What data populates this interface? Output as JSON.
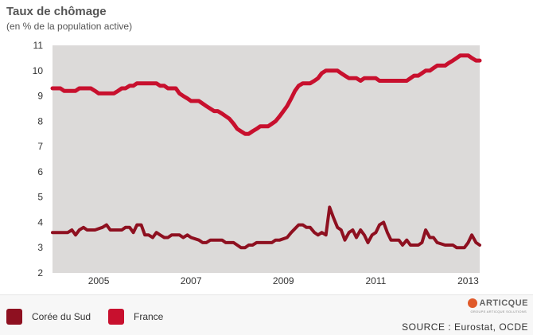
{
  "title": "Taux de chômage",
  "subtitle": "(en % de la population active)",
  "source": "SOURCE : Eurostat, OCDE",
  "logo": {
    "name": "ARTICQUE",
    "tagline": "GROUPE ARTICQUE SOLUTIONS"
  },
  "chart_data": {
    "type": "line",
    "xlim": [
      2004,
      2013.25
    ],
    "ylim": [
      2,
      11
    ],
    "x_ticks": [
      2005,
      2007,
      2009,
      2011,
      2013
    ],
    "x_tick_labels": [
      "2005",
      "2007",
      "2009",
      "2011",
      "2013"
    ],
    "y_ticks": [
      2,
      3,
      4,
      5,
      6,
      7,
      8,
      9,
      10,
      11
    ],
    "grid": false,
    "legend_position": "bottom-left",
    "series": [
      {
        "name": "Corée du Sud",
        "color": "#8e1020",
        "points": [
          [
            2004.0,
            3.6
          ],
          [
            2004.17,
            3.6
          ],
          [
            2004.33,
            3.6
          ],
          [
            2004.42,
            3.7
          ],
          [
            2004.5,
            3.5
          ],
          [
            2004.58,
            3.7
          ],
          [
            2004.67,
            3.8
          ],
          [
            2004.75,
            3.7
          ],
          [
            2004.92,
            3.7
          ],
          [
            2005.08,
            3.8
          ],
          [
            2005.17,
            3.9
          ],
          [
            2005.25,
            3.7
          ],
          [
            2005.5,
            3.7
          ],
          [
            2005.58,
            3.8
          ],
          [
            2005.67,
            3.8
          ],
          [
            2005.75,
            3.6
          ],
          [
            2005.83,
            3.9
          ],
          [
            2005.92,
            3.9
          ],
          [
            2006.0,
            3.5
          ],
          [
            2006.08,
            3.5
          ],
          [
            2006.17,
            3.4
          ],
          [
            2006.25,
            3.6
          ],
          [
            2006.33,
            3.5
          ],
          [
            2006.42,
            3.4
          ],
          [
            2006.5,
            3.4
          ],
          [
            2006.58,
            3.5
          ],
          [
            2006.75,
            3.5
          ],
          [
            2006.83,
            3.4
          ],
          [
            2006.92,
            3.5
          ],
          [
            2007.0,
            3.4
          ],
          [
            2007.17,
            3.3
          ],
          [
            2007.25,
            3.2
          ],
          [
            2007.33,
            3.2
          ],
          [
            2007.42,
            3.3
          ],
          [
            2007.67,
            3.3
          ],
          [
            2007.75,
            3.2
          ],
          [
            2007.92,
            3.2
          ],
          [
            2008.0,
            3.1
          ],
          [
            2008.08,
            3.0
          ],
          [
            2008.17,
            3.0
          ],
          [
            2008.25,
            3.1
          ],
          [
            2008.33,
            3.1
          ],
          [
            2008.42,
            3.2
          ],
          [
            2008.75,
            3.2
          ],
          [
            2008.83,
            3.3
          ],
          [
            2008.92,
            3.3
          ],
          [
            2009.08,
            3.4
          ],
          [
            2009.17,
            3.6
          ],
          [
            2009.33,
            3.9
          ],
          [
            2009.42,
            3.9
          ],
          [
            2009.5,
            3.8
          ],
          [
            2009.58,
            3.8
          ],
          [
            2009.67,
            3.6
          ],
          [
            2009.75,
            3.5
          ],
          [
            2009.83,
            3.6
          ],
          [
            2009.92,
            3.5
          ],
          [
            2010.0,
            4.6
          ],
          [
            2010.08,
            4.2
          ],
          [
            2010.17,
            3.8
          ],
          [
            2010.25,
            3.7
          ],
          [
            2010.33,
            3.3
          ],
          [
            2010.42,
            3.6
          ],
          [
            2010.5,
            3.7
          ],
          [
            2010.58,
            3.4
          ],
          [
            2010.67,
            3.7
          ],
          [
            2010.75,
            3.5
          ],
          [
            2010.83,
            3.2
          ],
          [
            2010.92,
            3.5
          ],
          [
            2011.0,
            3.6
          ],
          [
            2011.08,
            3.9
          ],
          [
            2011.17,
            4.0
          ],
          [
            2011.25,
            3.6
          ],
          [
            2011.33,
            3.3
          ],
          [
            2011.42,
            3.3
          ],
          [
            2011.5,
            3.3
          ],
          [
            2011.58,
            3.1
          ],
          [
            2011.67,
            3.3
          ],
          [
            2011.75,
            3.1
          ],
          [
            2011.83,
            3.1
          ],
          [
            2011.92,
            3.1
          ],
          [
            2012.0,
            3.2
          ],
          [
            2012.08,
            3.7
          ],
          [
            2012.17,
            3.4
          ],
          [
            2012.25,
            3.4
          ],
          [
            2012.33,
            3.2
          ],
          [
            2012.5,
            3.1
          ],
          [
            2012.67,
            3.1
          ],
          [
            2012.75,
            3.0
          ],
          [
            2012.92,
            3.0
          ],
          [
            2013.0,
            3.2
          ],
          [
            2013.08,
            3.5
          ],
          [
            2013.17,
            3.2
          ],
          [
            2013.25,
            3.1
          ]
        ]
      },
      {
        "name": "France",
        "color": "#c8102e",
        "points": [
          [
            2004.0,
            9.3
          ],
          [
            2004.17,
            9.3
          ],
          [
            2004.25,
            9.2
          ],
          [
            2004.5,
            9.2
          ],
          [
            2004.58,
            9.3
          ],
          [
            2004.83,
            9.3
          ],
          [
            2004.92,
            9.2
          ],
          [
            2005.0,
            9.1
          ],
          [
            2005.25,
            9.1
          ],
          [
            2005.33,
            9.1
          ],
          [
            2005.42,
            9.2
          ],
          [
            2005.5,
            9.3
          ],
          [
            2005.58,
            9.3
          ],
          [
            2005.67,
            9.4
          ],
          [
            2005.75,
            9.4
          ],
          [
            2005.83,
            9.5
          ],
          [
            2006.25,
            9.5
          ],
          [
            2006.33,
            9.4
          ],
          [
            2006.42,
            9.4
          ],
          [
            2006.5,
            9.3
          ],
          [
            2006.67,
            9.3
          ],
          [
            2006.75,
            9.1
          ],
          [
            2006.83,
            9.0
          ],
          [
            2006.92,
            8.9
          ],
          [
            2007.0,
            8.8
          ],
          [
            2007.17,
            8.8
          ],
          [
            2007.33,
            8.6
          ],
          [
            2007.5,
            8.4
          ],
          [
            2007.58,
            8.4
          ],
          [
            2007.67,
            8.3
          ],
          [
            2007.75,
            8.2
          ],
          [
            2007.83,
            8.1
          ],
          [
            2007.92,
            7.9
          ],
          [
            2008.0,
            7.7
          ],
          [
            2008.08,
            7.6
          ],
          [
            2008.17,
            7.5
          ],
          [
            2008.25,
            7.5
          ],
          [
            2008.33,
            7.6
          ],
          [
            2008.42,
            7.7
          ],
          [
            2008.5,
            7.8
          ],
          [
            2008.67,
            7.8
          ],
          [
            2008.75,
            7.9
          ],
          [
            2008.83,
            8.0
          ],
          [
            2008.92,
            8.2
          ],
          [
            2009.0,
            8.4
          ],
          [
            2009.08,
            8.6
          ],
          [
            2009.17,
            8.9
          ],
          [
            2009.25,
            9.2
          ],
          [
            2009.33,
            9.4
          ],
          [
            2009.42,
            9.5
          ],
          [
            2009.5,
            9.5
          ],
          [
            2009.58,
            9.5
          ],
          [
            2009.67,
            9.6
          ],
          [
            2009.75,
            9.7
          ],
          [
            2009.83,
            9.9
          ],
          [
            2009.92,
            10.0
          ],
          [
            2010.17,
            10.0
          ],
          [
            2010.25,
            9.9
          ],
          [
            2010.33,
            9.8
          ],
          [
            2010.42,
            9.7
          ],
          [
            2010.58,
            9.7
          ],
          [
            2010.67,
            9.6
          ],
          [
            2010.75,
            9.7
          ],
          [
            2010.83,
            9.7
          ],
          [
            2011.0,
            9.7
          ],
          [
            2011.08,
            9.6
          ],
          [
            2011.67,
            9.6
          ],
          [
            2011.75,
            9.7
          ],
          [
            2011.83,
            9.8
          ],
          [
            2011.92,
            9.8
          ],
          [
            2012.0,
            9.9
          ],
          [
            2012.08,
            10.0
          ],
          [
            2012.17,
            10.0
          ],
          [
            2012.25,
            10.1
          ],
          [
            2012.33,
            10.2
          ],
          [
            2012.5,
            10.2
          ],
          [
            2012.58,
            10.3
          ],
          [
            2012.67,
            10.4
          ],
          [
            2012.75,
            10.5
          ],
          [
            2012.83,
            10.6
          ],
          [
            2013.0,
            10.6
          ],
          [
            2013.08,
            10.5
          ],
          [
            2013.17,
            10.4
          ],
          [
            2013.25,
            10.4
          ]
        ]
      }
    ]
  }
}
